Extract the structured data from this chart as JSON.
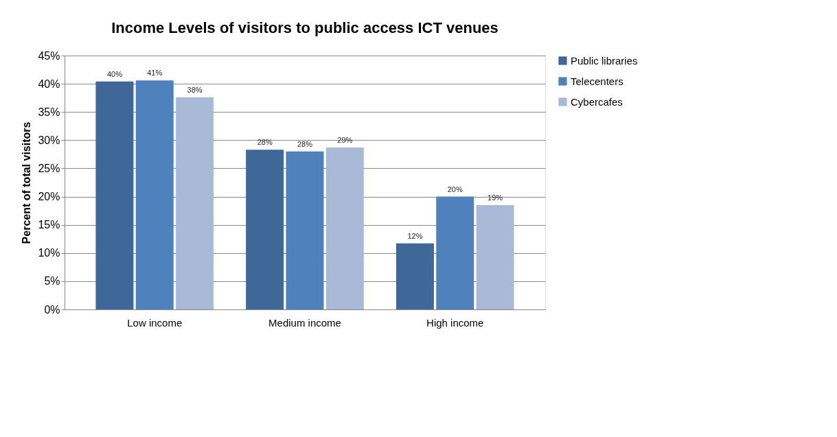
{
  "chart_data": {
    "type": "bar",
    "title": "Income Levels of visitors to public access ICT venues",
    "ylabel": "Percent  of total visitors",
    "categories": [
      "Low income",
      "Medium income",
      "High income"
    ],
    "series": [
      {
        "name": "Public libraries",
        "color": "#3f6899",
        "values": [
          40.4,
          28.3,
          11.7
        ],
        "value_labels": [
          "40%",
          "28%",
          "12%"
        ]
      },
      {
        "name": "Telecenters",
        "color": "#4f81bd",
        "values": [
          40.6,
          28.0,
          20.0
        ],
        "value_labels": [
          "41%",
          "28%",
          "20%"
        ]
      },
      {
        "name": "Cybercafes",
        "color": "#a9bad9",
        "values": [
          37.6,
          28.7,
          18.5
        ],
        "value_labels": [
          "38%",
          "29%",
          "19%"
        ]
      }
    ],
    "ylim": [
      0,
      45
    ],
    "yticks": [
      {
        "value": 0,
        "label": "0%"
      },
      {
        "value": 5,
        "label": "5%"
      },
      {
        "value": 10,
        "label": "10%"
      },
      {
        "value": 15,
        "label": "15%"
      },
      {
        "value": 20,
        "label": "20%"
      },
      {
        "value": 25,
        "label": "25%"
      },
      {
        "value": 30,
        "label": "30%"
      },
      {
        "value": 35,
        "label": "35%"
      },
      {
        "value": 40,
        "label": "40%"
      },
      {
        "value": 45,
        "label": "45%"
      }
    ],
    "grid": "y",
    "legend": "right"
  }
}
